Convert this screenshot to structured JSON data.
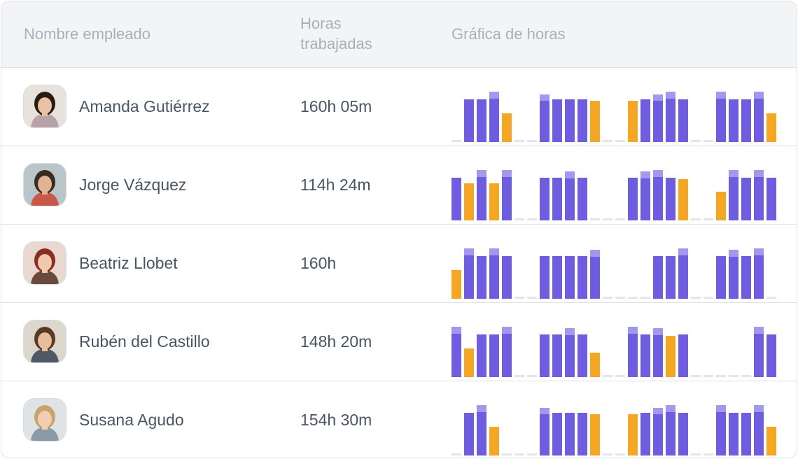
{
  "header": {
    "name_label": "Nombre empleado",
    "hours_label": "Horas trabajadas",
    "chart_label": "Gráfica de horas"
  },
  "colors": {
    "bar_purple": "#6e5de0",
    "bar_purple_top": "#a198ef",
    "bar_orange": "#f5a623",
    "bar_empty": "#e3e5e8",
    "text": "#4a5563",
    "header_text": "#a9b0b8"
  },
  "employees": [
    {
      "name": "Amanda Gutiérrez",
      "hours": "160h 05m",
      "avatar": {
        "bg": "#e7e2dc",
        "hair": "#2b1a12",
        "skin": "#e9c2a6",
        "shirt": "#b8a3a8"
      },
      "days": [
        {
          "t": "e"
        },
        {
          "t": "p",
          "h": 0.85
        },
        {
          "t": "p",
          "h": 0.85
        },
        {
          "t": "p",
          "h": 1.0
        },
        {
          "t": "o",
          "h": 0.57
        },
        {
          "t": "e"
        },
        {
          "t": "e"
        },
        {
          "t": "p",
          "h": 0.94
        },
        {
          "t": "p",
          "h": 0.85
        },
        {
          "t": "p",
          "h": 0.85
        },
        {
          "t": "p",
          "h": 0.85
        },
        {
          "t": "o",
          "h": 0.82
        },
        {
          "t": "e"
        },
        {
          "t": "e"
        },
        {
          "t": "o",
          "h": 0.82
        },
        {
          "t": "p",
          "h": 0.85
        },
        {
          "t": "p",
          "h": 0.94
        },
        {
          "t": "p",
          "h": 1.0
        },
        {
          "t": "p",
          "h": 0.85
        },
        {
          "t": "e"
        },
        {
          "t": "e"
        },
        {
          "t": "p",
          "h": 1.0
        },
        {
          "t": "p",
          "h": 0.85
        },
        {
          "t": "p",
          "h": 0.85
        },
        {
          "t": "p",
          "h": 1.0
        },
        {
          "t": "o",
          "h": 0.57
        }
      ]
    },
    {
      "name": "Jorge Vázquez",
      "hours": "114h 24m",
      "avatar": {
        "bg": "#b9c6c9",
        "hair": "#3b2a1f",
        "skin": "#e0b395",
        "shirt": "#c9574a"
      },
      "days": [
        {
          "t": "p",
          "h": 0.85
        },
        {
          "t": "o",
          "h": 0.74
        },
        {
          "t": "p",
          "h": 1.0
        },
        {
          "t": "o",
          "h": 0.74
        },
        {
          "t": "p",
          "h": 1.0
        },
        {
          "t": "e"
        },
        {
          "t": "e"
        },
        {
          "t": "p",
          "h": 0.85
        },
        {
          "t": "p",
          "h": 0.85
        },
        {
          "t": "p",
          "h": 0.97
        },
        {
          "t": "p",
          "h": 0.85
        },
        {
          "t": "e"
        },
        {
          "t": "e"
        },
        {
          "t": "e"
        },
        {
          "t": "p",
          "h": 0.85
        },
        {
          "t": "p",
          "h": 0.97
        },
        {
          "t": "p",
          "h": 1.0
        },
        {
          "t": "p",
          "h": 0.85
        },
        {
          "t": "o",
          "h": 0.82
        },
        {
          "t": "e"
        },
        {
          "t": "e"
        },
        {
          "t": "o",
          "h": 0.57
        },
        {
          "t": "p",
          "h": 1.0
        },
        {
          "t": "p",
          "h": 0.85
        },
        {
          "t": "p",
          "h": 1.0
        },
        {
          "t": "p",
          "h": 0.85
        }
      ]
    },
    {
      "name": "Beatriz Llobet",
      "hours": "160h",
      "avatar": {
        "bg": "#e8d8cf",
        "hair": "#8a2e1f",
        "skin": "#f0c9ae",
        "shirt": "#6a4a3c"
      },
      "days": [
        {
          "t": "o",
          "h": 0.57
        },
        {
          "t": "p",
          "h": 1.0
        },
        {
          "t": "p",
          "h": 0.85
        },
        {
          "t": "p",
          "h": 1.0
        },
        {
          "t": "p",
          "h": 0.85
        },
        {
          "t": "e"
        },
        {
          "t": "e"
        },
        {
          "t": "p",
          "h": 0.85
        },
        {
          "t": "p",
          "h": 0.85
        },
        {
          "t": "p",
          "h": 0.85
        },
        {
          "t": "p",
          "h": 0.85
        },
        {
          "t": "p",
          "h": 0.97
        },
        {
          "t": "e"
        },
        {
          "t": "e"
        },
        {
          "t": "e"
        },
        {
          "t": "e"
        },
        {
          "t": "p",
          "h": 0.85
        },
        {
          "t": "p",
          "h": 0.85
        },
        {
          "t": "p",
          "h": 1.0
        },
        {
          "t": "e"
        },
        {
          "t": "e"
        },
        {
          "t": "p",
          "h": 0.85
        },
        {
          "t": "p",
          "h": 0.97
        },
        {
          "t": "p",
          "h": 0.85
        },
        {
          "t": "p",
          "h": 1.0
        },
        {
          "t": "e"
        }
      ]
    },
    {
      "name": "Rubén del Castillo",
      "hours": "148h 20m",
      "avatar": {
        "bg": "#ddd6cc",
        "hair": "#5a3a22",
        "skin": "#e6bd9d",
        "shirt": "#4f5a66"
      },
      "days": [
        {
          "t": "p",
          "h": 1.0
        },
        {
          "t": "o",
          "h": 0.57
        },
        {
          "t": "p",
          "h": 0.85
        },
        {
          "t": "p",
          "h": 0.85
        },
        {
          "t": "p",
          "h": 1.0
        },
        {
          "t": "e"
        },
        {
          "t": "e"
        },
        {
          "t": "p",
          "h": 0.85
        },
        {
          "t": "p",
          "h": 0.85
        },
        {
          "t": "p",
          "h": 0.97
        },
        {
          "t": "p",
          "h": 0.85
        },
        {
          "t": "o",
          "h": 0.49
        },
        {
          "t": "e"
        },
        {
          "t": "e"
        },
        {
          "t": "p",
          "h": 1.0
        },
        {
          "t": "p",
          "h": 0.85
        },
        {
          "t": "p",
          "h": 0.97
        },
        {
          "t": "o",
          "h": 0.82
        },
        {
          "t": "p",
          "h": 0.85
        },
        {
          "t": "e"
        },
        {
          "t": "e"
        },
        {
          "t": "e"
        },
        {
          "t": "e"
        },
        {
          "t": "e"
        },
        {
          "t": "p",
          "h": 1.0
        },
        {
          "t": "p",
          "h": 0.85
        }
      ]
    },
    {
      "name": "Susana Agudo",
      "hours": "154h 30m",
      "avatar": {
        "bg": "#dfe3e6",
        "hair": "#c9a36a",
        "skin": "#f0cdb3",
        "shirt": "#8a9aa6"
      },
      "days": [
        {
          "t": "e"
        },
        {
          "t": "p",
          "h": 0.85
        },
        {
          "t": "p",
          "h": 1.0
        },
        {
          "t": "o",
          "h": 0.57
        },
        {
          "t": "e"
        },
        {
          "t": "e"
        },
        {
          "t": "e"
        },
        {
          "t": "p",
          "h": 0.94
        },
        {
          "t": "p",
          "h": 0.85
        },
        {
          "t": "p",
          "h": 0.85
        },
        {
          "t": "p",
          "h": 0.85
        },
        {
          "t": "o",
          "h": 0.82
        },
        {
          "t": "e"
        },
        {
          "t": "e"
        },
        {
          "t": "o",
          "h": 0.82
        },
        {
          "t": "p",
          "h": 0.85
        },
        {
          "t": "p",
          "h": 0.94
        },
        {
          "t": "p",
          "h": 1.0
        },
        {
          "t": "p",
          "h": 0.85
        },
        {
          "t": "e"
        },
        {
          "t": "e"
        },
        {
          "t": "p",
          "h": 1.0
        },
        {
          "t": "p",
          "h": 0.85
        },
        {
          "t": "p",
          "h": 0.85
        },
        {
          "t": "p",
          "h": 1.0
        },
        {
          "t": "o",
          "h": 0.57
        }
      ]
    }
  ]
}
